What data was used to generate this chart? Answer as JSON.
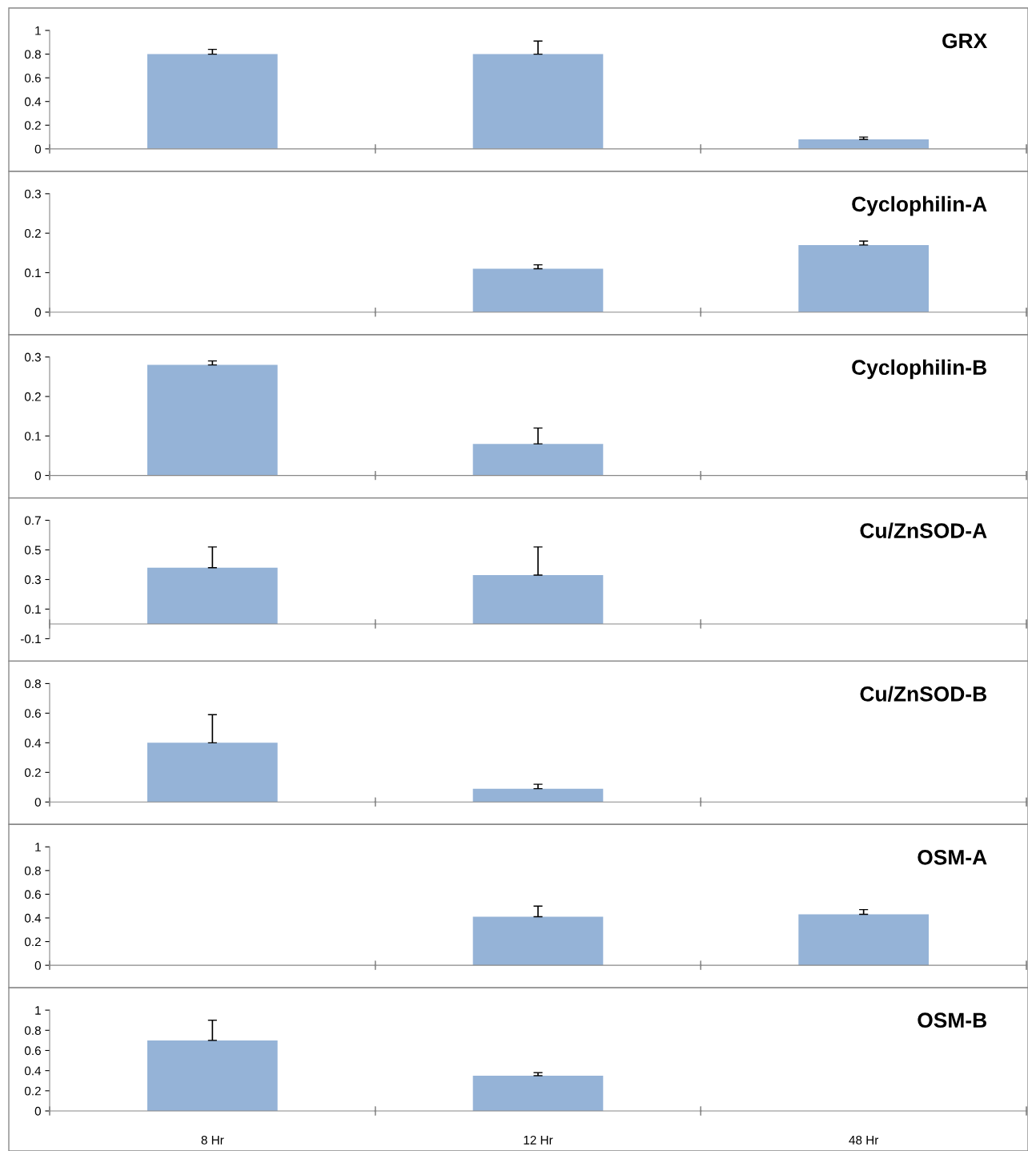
{
  "chart_data": [
    {
      "type": "bar",
      "title": "GRX",
      "categories": [
        null,
        null,
        null
      ],
      "values": [
        0.8,
        0.8,
        0.08
      ],
      "errors": [
        [
          0.8,
          0.84
        ],
        [
          0.8,
          0.91
        ],
        [
          0.08,
          0.1
        ]
      ],
      "color": "#95b3d7",
      "ylim": [
        0,
        1
      ],
      "yticks": [
        0,
        0.2,
        0.4,
        0.6,
        0.8,
        1
      ],
      "tick_labels": "y"
    },
    {
      "type": "bar",
      "title": "Cyclophilin-A",
      "categories": [
        null,
        null,
        null
      ],
      "values": [
        0,
        0.11,
        0.17
      ],
      "errors": [
        null,
        [
          0.11,
          0.12
        ],
        [
          0.17,
          0.18
        ]
      ],
      "color": "#95b3d7",
      "ylim": [
        0,
        0.3
      ],
      "yticks": [
        0,
        0.1,
        0.2,
        0.3
      ],
      "tick_labels": "y"
    },
    {
      "type": "bar",
      "title": "Cyclophilin-B",
      "categories": [
        null,
        null,
        null
      ],
      "values": [
        0.28,
        0.08,
        0
      ],
      "errors": [
        [
          0.28,
          0.29
        ],
        [
          0.08,
          0.12
        ],
        null
      ],
      "color": "#95b3d7",
      "ylim": [
        0,
        0.3
      ],
      "yticks": [
        0,
        0.1,
        0.2,
        0.3
      ],
      "tick_labels": "y"
    },
    {
      "type": "bar",
      "title": "Cu/ZnSOD-A",
      "categories": [
        null,
        null,
        null
      ],
      "values": [
        0.38,
        0.33,
        0
      ],
      "errors": [
        [
          0.38,
          0.52
        ],
        [
          0.33,
          0.52
        ],
        null
      ],
      "color": "#95b3d7",
      "ylim": [
        -0.1,
        0.7
      ],
      "yticks": [
        -0.1,
        0.1,
        0.3,
        0.5,
        0.7
      ],
      "tick_labels": "y"
    },
    {
      "type": "bar",
      "title": "Cu/ZnSOD-B",
      "categories": [
        null,
        null,
        null
      ],
      "values": [
        0.4,
        0.09,
        0
      ],
      "errors": [
        [
          0.4,
          0.59
        ],
        [
          0.09,
          0.12
        ],
        null
      ],
      "color": "#95b3d7",
      "ylim": [
        0,
        0.8
      ],
      "yticks": [
        0,
        0.2,
        0.4,
        0.6,
        0.8
      ],
      "tick_labels": "y"
    },
    {
      "type": "bar",
      "title": "OSM-A",
      "categories": [
        null,
        null,
        null
      ],
      "values": [
        0,
        0.41,
        0.43
      ],
      "errors": [
        null,
        [
          0.41,
          0.5
        ],
        [
          0.43,
          0.47
        ]
      ],
      "color": "#95b3d7",
      "ylim": [
        0,
        1
      ],
      "yticks": [
        0,
        0.2,
        0.4,
        0.6,
        0.8,
        1
      ],
      "tick_labels": "y"
    },
    {
      "type": "bar",
      "title": "OSM-B",
      "categories": [
        "8 Hr",
        "12 Hr",
        "48 Hr"
      ],
      "values": [
        0.7,
        0.35,
        0
      ],
      "errors": [
        [
          0.7,
          0.9
        ],
        [
          0.35,
          0.38
        ],
        null
      ],
      "color": "#95b3d7",
      "ylim": [
        0,
        1
      ],
      "yticks": [
        0,
        0.2,
        0.4,
        0.6,
        0.8,
        1
      ]
    }
  ]
}
